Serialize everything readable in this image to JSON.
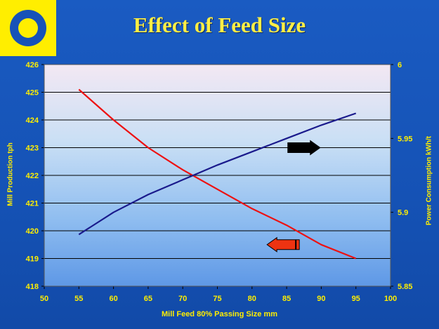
{
  "page": {
    "title": "Effect of Feed Size"
  },
  "logo": {
    "icon": "ring-logo-icon",
    "bg_color": "#ffee00",
    "ring_color": "#1752b8",
    "center_color": "#ffee00"
  },
  "colors": {
    "background": "#1554b8",
    "axis_text": "#ffee00",
    "production_line": "#ee1111",
    "power_line": "#1a1a8c",
    "arrow_right": "#000000",
    "arrow_left": "#ee3311"
  },
  "chart_data": {
    "type": "line",
    "title": "Effect of Feed Size",
    "xlabel": "Mill Feed 80% Passing Size  mm",
    "ylabel": "Mill Production tph",
    "y2label": "Power Consumption kWh/t",
    "xlim": [
      50,
      100
    ],
    "ylim": [
      418,
      426
    ],
    "y2lim": [
      5.85,
      6
    ],
    "x_ticks": [
      "50",
      "55",
      "60",
      "65",
      "70",
      "75",
      "80",
      "85",
      "90",
      "95",
      "100"
    ],
    "y_ticks": [
      "418",
      "419",
      "420",
      "421",
      "422",
      "423",
      "424",
      "425",
      "426"
    ],
    "y2_ticks": [
      "5.85",
      "5.9",
      "5.95",
      "6"
    ],
    "grid": true,
    "series": [
      {
        "axis": "left",
        "color": "#ee1111",
        "x": [
          55,
          60,
          65,
          70,
          75,
          80,
          85,
          90,
          95
        ],
        "y": [
          425.1,
          424.0,
          423.0,
          422.2,
          421.5,
          420.8,
          420.2,
          419.5,
          419.0
        ]
      },
      {
        "axis": "right",
        "color": "#1a1a8c",
        "x": [
          55,
          60,
          65,
          70,
          75,
          80,
          85,
          90,
          95
        ],
        "y": [
          5.885,
          5.9,
          5.912,
          5.922,
          5.932,
          5.941,
          5.95,
          5.959,
          5.967
        ]
      }
    ],
    "annotations": [
      {
        "type": "arrow",
        "direction": "right",
        "color": "#000000",
        "x": 87.5,
        "y": 423.0
      },
      {
        "type": "arrow",
        "direction": "left",
        "color": "#ee3311",
        "x": 84.5,
        "y": 419.5
      }
    ]
  }
}
